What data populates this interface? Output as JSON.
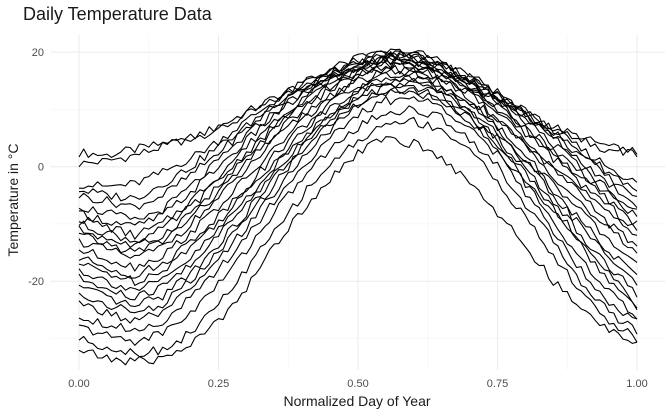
{
  "chart_data": {
    "type": "line",
    "title": "Daily Temperature Data",
    "xlabel": "Normalized Day of Year",
    "ylabel": "Temperature in °C",
    "xlim": [
      0,
      1
    ],
    "ylim": [
      -35.5,
      23
    ],
    "x_ticks": [
      0,
      0.25,
      0.5,
      0.75,
      1
    ],
    "x_tick_labels": [
      "0.00",
      "0.25",
      "0.50",
      "0.75",
      "1.00"
    ],
    "y_ticks": [
      -20,
      0,
      20
    ],
    "y_tick_labels": [
      "-20",
      "0",
      "20"
    ],
    "grid": true,
    "legend": "none",
    "line_color": "#000000",
    "x": [
      0,
      0.05,
      0.1,
      0.15,
      0.2,
      0.25,
      0.3,
      0.35,
      0.4,
      0.45,
      0.5,
      0.55,
      0.6,
      0.65,
      0.7,
      0.75,
      0.8,
      0.85,
      0.9,
      0.95,
      1
    ],
    "series": [
      {
        "values": [
          2.5,
          2,
          3,
          4,
          5,
          6.5,
          9,
          11.5,
          14,
          16,
          17.5,
          18.5,
          18,
          16.5,
          14,
          11.5,
          9,
          6.5,
          4.5,
          3,
          2.5
        ]
      },
      {
        "values": [
          0.5,
          1,
          2,
          3.5,
          5,
          7,
          9.5,
          12,
          14.5,
          16.5,
          18,
          19,
          18.5,
          17,
          14.5,
          12,
          9.5,
          7,
          5,
          3.5,
          2
        ]
      },
      {
        "values": [
          -3,
          -3.5,
          -3,
          -1,
          1.5,
          4.5,
          8,
          11.5,
          14.5,
          17,
          19,
          20,
          19.5,
          18,
          15.5,
          12.5,
          9.5,
          6.5,
          3,
          0,
          -3
        ]
      },
      {
        "values": [
          -4,
          -5,
          -5.5,
          -3,
          0,
          3.5,
          7,
          11,
          14,
          16.5,
          18.5,
          20,
          20,
          18.5,
          16,
          13,
          9.5,
          6,
          2.5,
          -1,
          -4
        ]
      },
      {
        "values": [
          -5,
          -6,
          -7,
          -5,
          -1.5,
          2.5,
          6.5,
          10.5,
          13.5,
          16,
          18,
          19.5,
          19.5,
          18,
          15.5,
          12.5,
          9,
          5.5,
          2,
          -2,
          -5
        ]
      },
      {
        "values": [
          -7,
          -8,
          -9.5,
          -7.5,
          -3.5,
          1,
          5.5,
          9.5,
          13,
          15.5,
          17.5,
          19,
          19,
          17.5,
          15,
          12,
          8.5,
          5,
          1,
          -3,
          -6.5
        ]
      },
      {
        "values": [
          -8,
          -9.5,
          -10.5,
          -8.5,
          -4.5,
          0,
          4.5,
          9,
          12.5,
          15.5,
          17.5,
          19,
          19,
          17.5,
          15,
          11.5,
          8,
          4,
          0,
          -4,
          -8
        ]
      },
      {
        "values": [
          -9,
          -10.5,
          -12,
          -10,
          -6,
          -1.5,
          3.5,
          8,
          12,
          15,
          17.5,
          19,
          19,
          17.5,
          14.5,
          11,
          7,
          3,
          -1,
          -5,
          -9
        ]
      },
      {
        "values": [
          -10,
          -11.5,
          -13,
          -11,
          -7,
          -2.5,
          2.5,
          7,
          11,
          14.5,
          17,
          18.5,
          18.5,
          17,
          14,
          10.5,
          6.5,
          2.5,
          -2,
          -6,
          -10
        ]
      },
      {
        "values": [
          -11,
          -12.5,
          -14,
          -12,
          -8,
          -3.5,
          1.5,
          6.5,
          10.5,
          14,
          16.5,
          18,
          18,
          16.5,
          13.5,
          10,
          6,
          1.5,
          -3,
          -7,
          -11
        ]
      },
      {
        "values": [
          -12,
          -13.5,
          -15,
          -13,
          -9,
          -4.5,
          0.5,
          5.5,
          10,
          13.5,
          16,
          17.5,
          17.5,
          16,
          13,
          9.5,
          5,
          0.5,
          -4,
          -8.5,
          -12
        ]
      },
      {
        "values": [
          -13,
          -14.5,
          -16,
          -14,
          -10,
          -5.5,
          -0.5,
          4.5,
          9,
          12.5,
          15.5,
          17,
          17,
          15.5,
          12.5,
          8.5,
          4,
          -0.5,
          -5,
          -10,
          -14
        ]
      },
      {
        "values": [
          -14.5,
          -16,
          -17.5,
          -15.5,
          -11.5,
          -7,
          -2,
          3,
          8,
          12,
          15,
          16.5,
          16.5,
          15,
          12,
          8,
          3.5,
          -1.5,
          -6.5,
          -11,
          -15
        ]
      },
      {
        "values": [
          -16,
          -17.5,
          -19,
          -17,
          -13,
          -8.5,
          -3.5,
          2,
          7,
          11,
          14,
          16,
          16,
          14.5,
          11.5,
          7,
          2,
          -3,
          -8,
          -13,
          -17
        ]
      },
      {
        "values": [
          -17,
          -18.5,
          -20,
          -18,
          -14,
          -9.5,
          -4.5,
          1,
          6,
          10.5,
          13.5,
          15.5,
          15.5,
          14,
          11,
          6.5,
          1.5,
          -4,
          -9.5,
          -15,
          -19
        ]
      },
      {
        "values": [
          -18,
          -20,
          -21.5,
          -20,
          -16,
          -11,
          -5.5,
          0,
          5,
          9.5,
          13,
          15,
          15,
          13.5,
          10,
          5.5,
          0.5,
          -5,
          -10.5,
          -16,
          -20
        ]
      },
      {
        "values": [
          -19.5,
          -21.5,
          -23,
          -21,
          -17,
          -12,
          -6.5,
          -1,
          4.5,
          9,
          12.5,
          14.5,
          14.5,
          13,
          9.5,
          5,
          -0.5,
          -6,
          -12,
          -17.5,
          -22
        ]
      },
      {
        "values": [
          -21,
          -23,
          -24.5,
          -22.5,
          -18.5,
          -13.5,
          -8,
          -2,
          3.5,
          8,
          12,
          14,
          14,
          12.5,
          9,
          4.5,
          -1,
          -7,
          -13,
          -19,
          -24
        ]
      },
      {
        "values": [
          -22.5,
          -24,
          -25.5,
          -24,
          -20,
          -15,
          -9,
          -3,
          3,
          7.5,
          11,
          13.5,
          13.5,
          12,
          8.5,
          4,
          -2,
          -8,
          -14,
          -20,
          -25
        ]
      },
      {
        "values": [
          -24,
          -25.5,
          -27,
          -25.5,
          -21.5,
          -16.5,
          -10.5,
          -4.5,
          1.5,
          6.5,
          10.5,
          13,
          13,
          11.5,
          8,
          3,
          -3,
          -9.5,
          -16,
          -22,
          -26
        ]
      },
      {
        "values": [
          -26,
          -27.5,
          -28.5,
          -27,
          -23,
          -18,
          -12,
          -6,
          0,
          5,
          9,
          11.5,
          12,
          10.5,
          7,
          2,
          -4.5,
          -11,
          -18,
          -23.5,
          -27
        ]
      },
      {
        "values": [
          -28,
          -29.5,
          -30.5,
          -29,
          -25.5,
          -20.5,
          -14.5,
          -8,
          -2,
          3,
          7,
          9.5,
          10,
          8.5,
          5,
          0,
          -6.5,
          -13,
          -20,
          -25.5,
          -28.5
        ]
      },
      {
        "values": [
          -30,
          -31.5,
          -32.5,
          -32,
          -29,
          -24,
          -18,
          -11.5,
          -5,
          0.5,
          4.5,
          7.5,
          8,
          6.5,
          3,
          -2.5,
          -9,
          -15.5,
          -22,
          -27,
          -30
        ]
      },
      {
        "values": [
          -32,
          -33.5,
          -34,
          -33.5,
          -31,
          -27,
          -21,
          -14,
          -7.5,
          -2,
          2.5,
          5,
          4,
          1.5,
          -2.5,
          -8,
          -14,
          -20,
          -25,
          -28.5,
          -30.5
        ]
      }
    ]
  }
}
